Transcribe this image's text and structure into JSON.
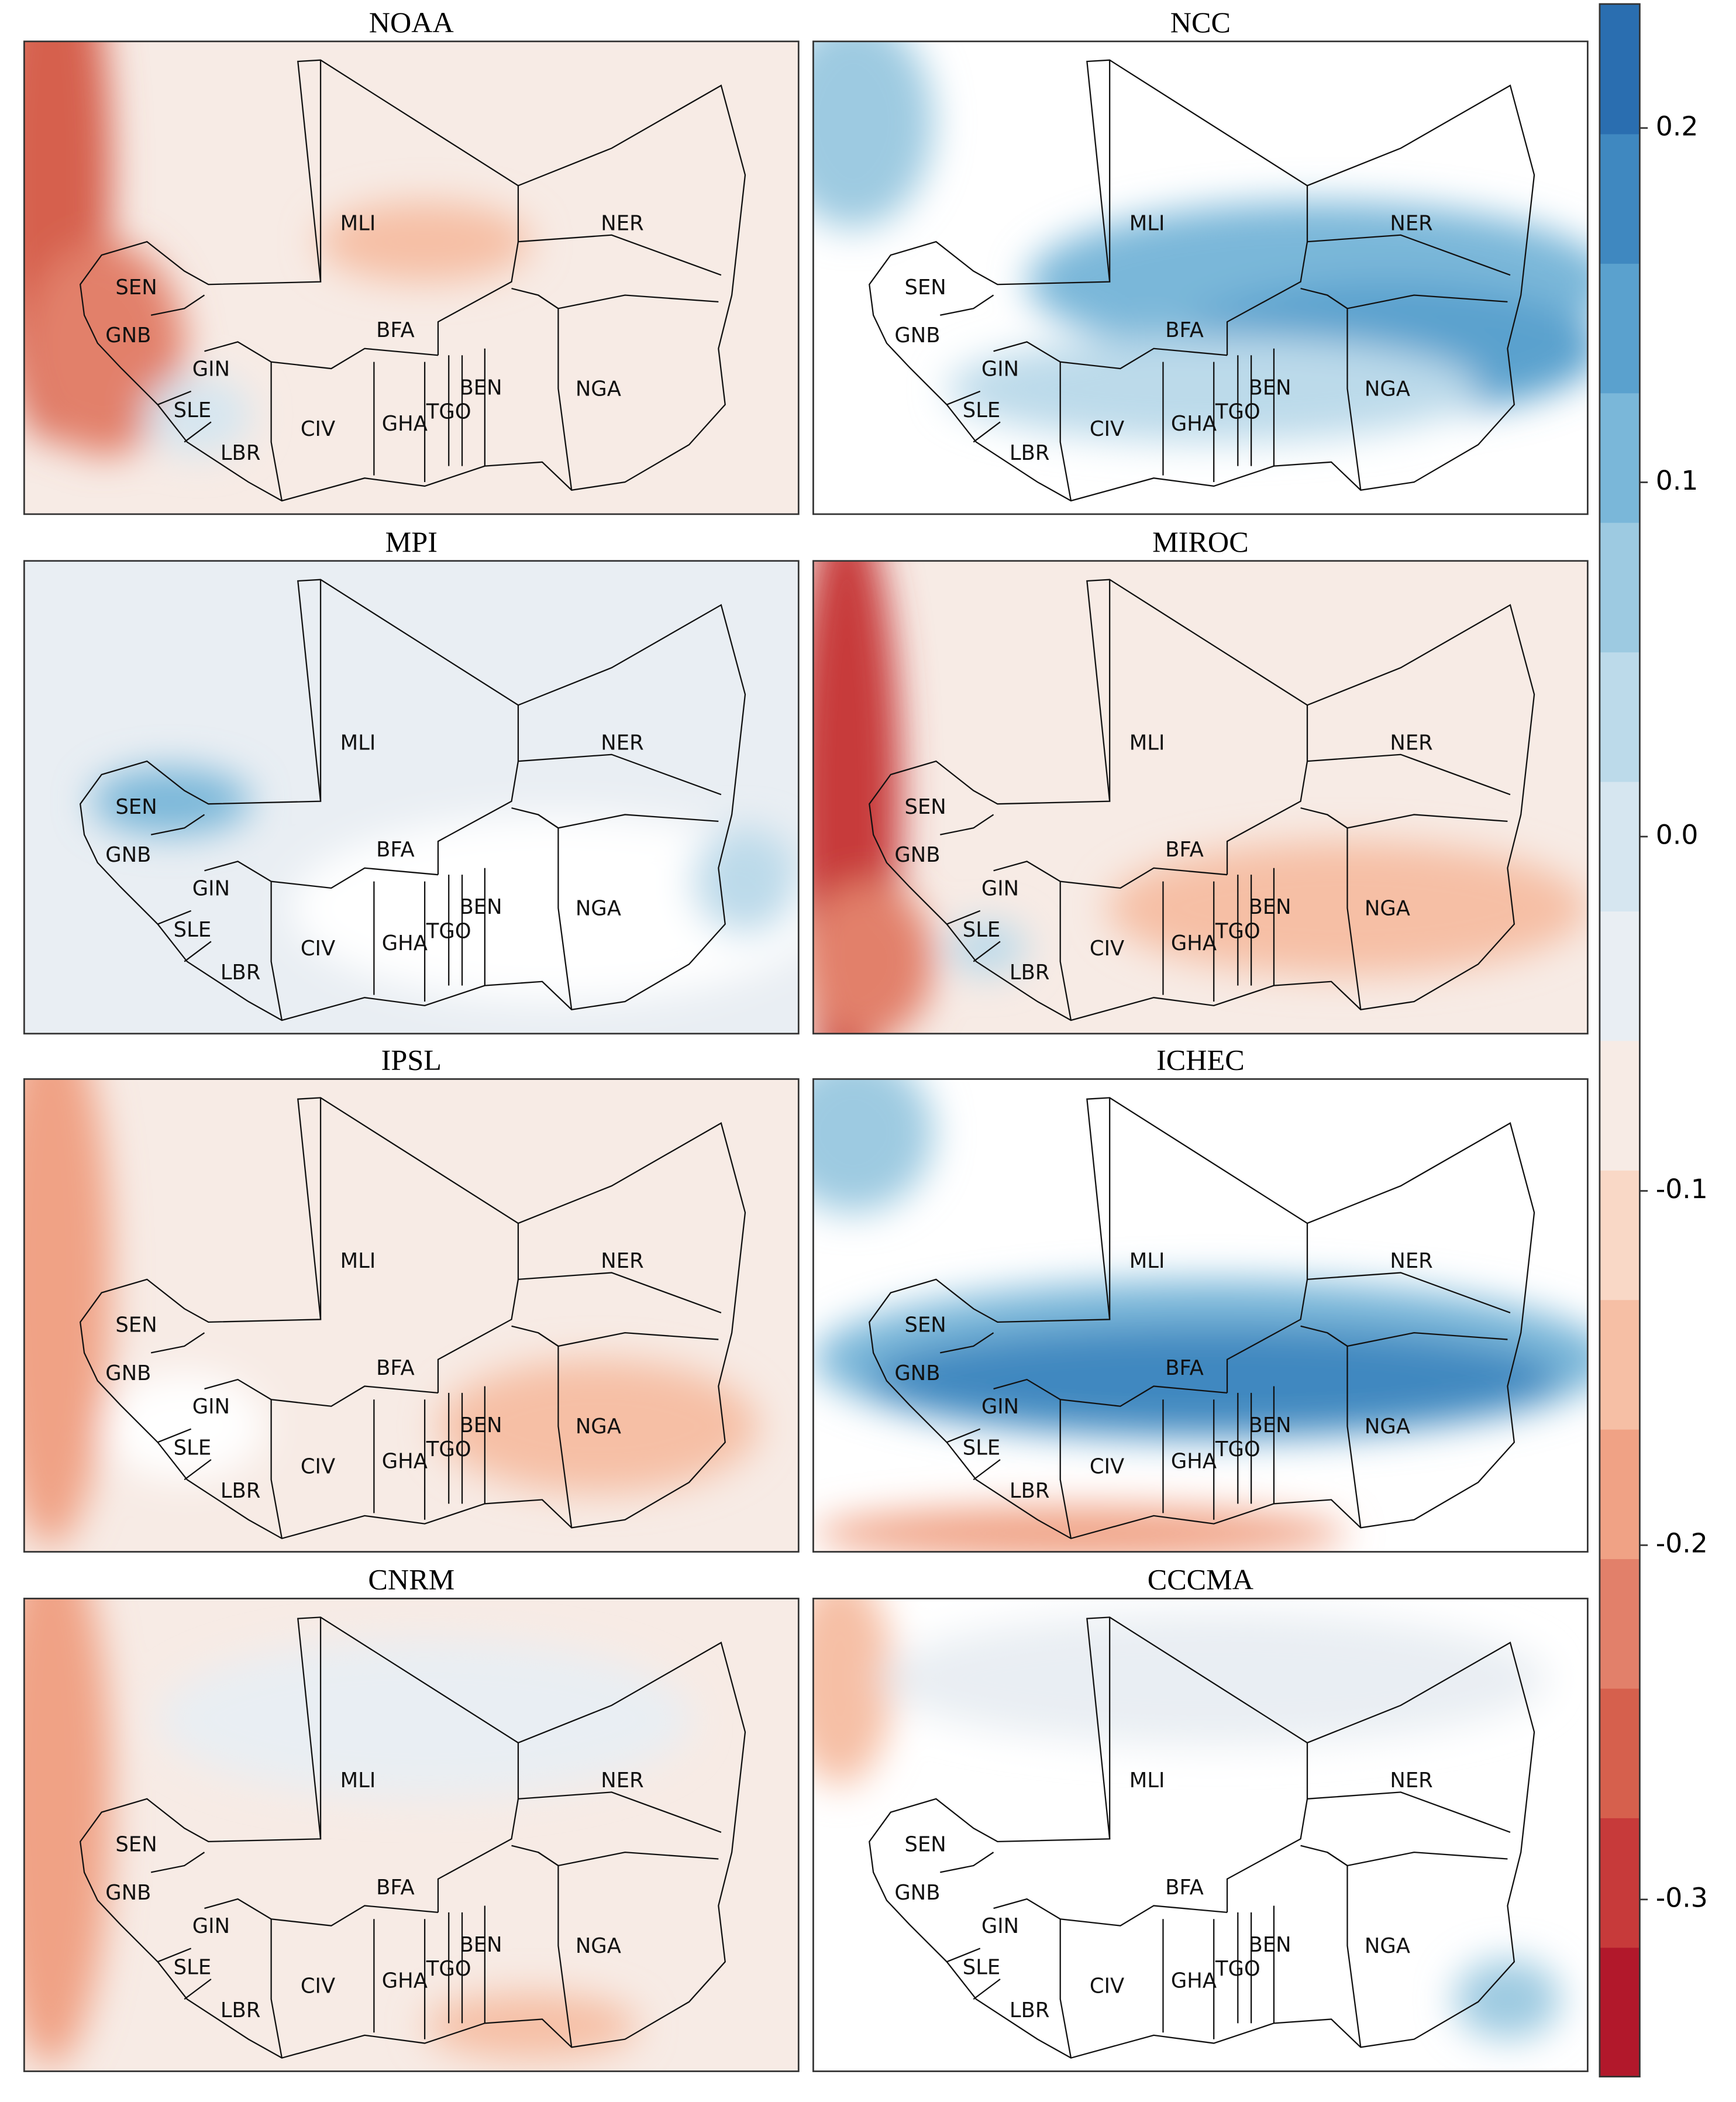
{
  "panels": [
    {
      "title": "NOAA"
    },
    {
      "title": "NCC"
    },
    {
      "title": "MPI"
    },
    {
      "title": "MIROC"
    },
    {
      "title": "IPSL"
    },
    {
      "title": "ICHEC"
    },
    {
      "title": "CNRM"
    },
    {
      "title": "CCCMA"
    }
  ],
  "country_labels": [
    "MLI",
    "NER",
    "SEN",
    "GNB",
    "GIN",
    "SLE",
    "LBR",
    "CIV",
    "BFA",
    "GHA",
    "TGO",
    "BEN",
    "NGA"
  ],
  "colorbar": {
    "lim": [
      -0.35,
      0.235
    ],
    "ticks": [
      0.2,
      0.1,
      {
        "value": 0,
        "label": "0.0"
      },
      -0.1,
      -0.2,
      -0.3
    ],
    "colors": [
      "#b2182b",
      "#c73a3a",
      "#d6604d",
      "#e2806a",
      "#f0a285",
      "#f6bfa5",
      "#f9d8c6",
      "#f7ebe5",
      "#e9eef3",
      "#d6e6f0",
      "#bcdaea",
      "#9dcae1",
      "#7ab7d9",
      "#5aa1ce",
      "#3f88c0",
      "#2a6eb0"
    ]
  }
}
